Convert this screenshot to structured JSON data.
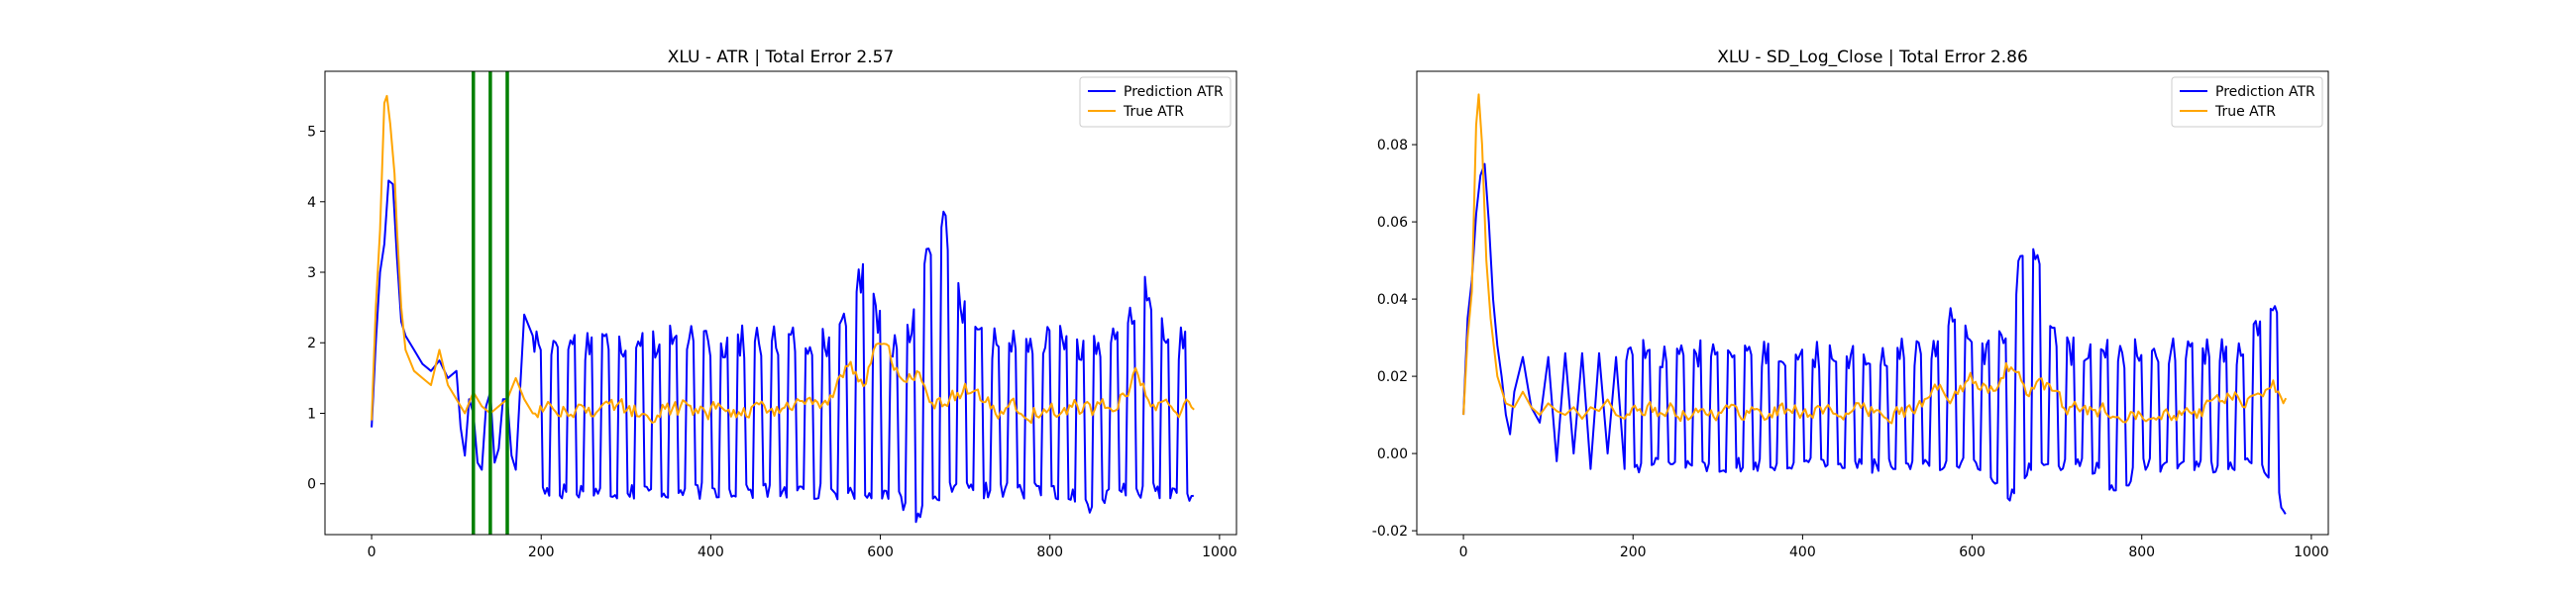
{
  "chart_data": [
    {
      "type": "line",
      "title": "XLU - ATR | Total Error 2.57",
      "xlabel": "",
      "ylabel": "",
      "xlim": [
        -55,
        1020
      ],
      "ylim": [
        -0.72,
        5.85
      ],
      "xticks": [
        0,
        200,
        400,
        600,
        800,
        1000
      ],
      "yticks": [
        0,
        1,
        2,
        3,
        4,
        5
      ],
      "grid": false,
      "legend_position": "upper right",
      "vlines": {
        "x": [
          120,
          140,
          160
        ],
        "color": "#008000"
      },
      "series": [
        {
          "name": "Prediction ATR",
          "color": "#0000ff",
          "points": [
            [
              0,
              0.8
            ],
            [
              5,
              2.0
            ],
            [
              10,
              3.0
            ],
            [
              15,
              3.4
            ],
            [
              20,
              4.3
            ],
            [
              25,
              4.25
            ],
            [
              30,
              3.2
            ],
            [
              35,
              2.3
            ],
            [
              40,
              2.1
            ],
            [
              50,
              1.9
            ],
            [
              60,
              1.7
            ],
            [
              70,
              1.6
            ],
            [
              80,
              1.75
            ],
            [
              90,
              1.5
            ],
            [
              100,
              1.6
            ],
            [
              105,
              0.8
            ],
            [
              110,
              0.4
            ],
            [
              115,
              1.2
            ],
            [
              120,
              1.0
            ],
            [
              125,
              0.3
            ],
            [
              130,
              0.2
            ],
            [
              135,
              1.1
            ],
            [
              140,
              1.3
            ],
            [
              145,
              0.3
            ],
            [
              150,
              0.5
            ],
            [
              155,
              1.2
            ],
            [
              160,
              1.2
            ],
            [
              165,
              0.4
            ],
            [
              170,
              0.2
            ],
            [
              175,
              1.3
            ],
            [
              180,
              2.4
            ],
            [
              190,
              2.1
            ]
          ],
          "cycle": {
            "period": 20,
            "start": 190,
            "end": 970,
            "high_base": 2.0,
            "low_base": -0.1,
            "high_noise": 0.25,
            "low_noise": 0.12,
            "peaks": [
              [
                580,
                2.9
              ],
              [
                660,
                3.2
              ],
              [
                680,
                3.1
              ],
              [
                910,
                2.7
              ]
            ],
            "troughs": [
              [
                640,
                -0.45
              ],
              [
                850,
                -0.35
              ],
              [
                970,
                -0.2
              ]
            ]
          }
        },
        {
          "name": "True ATR",
          "color": "#ffa500",
          "points": [
            [
              0,
              0.9
            ],
            [
              5,
              2.5
            ],
            [
              10,
              3.6
            ],
            [
              15,
              5.4
            ],
            [
              18,
              5.5
            ],
            [
              22,
              5.1
            ],
            [
              27,
              4.4
            ],
            [
              30,
              3.6
            ],
            [
              35,
              2.5
            ],
            [
              40,
              1.9
            ],
            [
              50,
              1.6
            ],
            [
              60,
              1.5
            ],
            [
              70,
              1.4
            ],
            [
              80,
              1.9
            ],
            [
              90,
              1.4
            ],
            [
              100,
              1.2
            ],
            [
              110,
              1.0
            ],
            [
              120,
              1.3
            ],
            [
              130,
              1.1
            ],
            [
              140,
              1.0
            ],
            [
              150,
              1.1
            ],
            [
              160,
              1.2
            ],
            [
              170,
              1.5
            ],
            [
              180,
              1.2
            ],
            [
              190,
              1.0
            ]
          ],
          "noise": {
            "start": 190,
            "end": 970,
            "base": 1.05,
            "amp": 0.22,
            "bumps": [
              [
                560,
                1.7
              ],
              [
                600,
                2.0
              ],
              [
                640,
                1.5
              ],
              [
                700,
                1.35
              ],
              [
                900,
                1.5
              ]
            ]
          }
        }
      ]
    },
    {
      "type": "line",
      "title": "XLU - SD_Log_Close | Total Error 2.86",
      "xlabel": "",
      "ylabel": "",
      "xlim": [
        -55,
        1020
      ],
      "ylim": [
        -0.021,
        0.099
      ],
      "xticks": [
        0,
        200,
        400,
        600,
        800,
        1000
      ],
      "yticks": [
        -0.02,
        0.0,
        0.02,
        0.04,
        0.06,
        0.08
      ],
      "grid": false,
      "legend_position": "upper right",
      "series": [
        {
          "name": "Prediction ATR",
          "color": "#0000ff",
          "points": [
            [
              0,
              0.01
            ],
            [
              5,
              0.035
            ],
            [
              10,
              0.045
            ],
            [
              15,
              0.062
            ],
            [
              20,
              0.072
            ],
            [
              25,
              0.075
            ],
            [
              30,
              0.06
            ],
            [
              35,
              0.04
            ],
            [
              40,
              0.028
            ],
            [
              45,
              0.02
            ],
            [
              50,
              0.01
            ],
            [
              55,
              0.005
            ],
            [
              60,
              0.016
            ],
            [
              70,
              0.025
            ],
            [
              80,
              0.012
            ],
            [
              90,
              0.008
            ],
            [
              100,
              0.025
            ],
            [
              110,
              -0.002
            ],
            [
              120,
              0.026
            ],
            [
              130,
              0.0
            ],
            [
              140,
              0.026
            ],
            [
              150,
              -0.004
            ],
            [
              160,
              0.026
            ],
            [
              170,
              0.0
            ],
            [
              180,
              0.025
            ],
            [
              190,
              -0.004
            ]
          ],
          "cycle": {
            "period": 20,
            "start": 190,
            "end": 970,
            "high_base": 0.026,
            "low_base": -0.003,
            "high_noise": 0.004,
            "low_noise": 0.002,
            "peaks": [
              [
                580,
                0.037
              ],
              [
                660,
                0.047
              ],
              [
                680,
                0.04
              ],
              [
                950,
                0.038
              ]
            ],
            "troughs": [
              [
                640,
                -0.011
              ],
              [
                770,
                -0.01
              ],
              [
                970,
                -0.014
              ]
            ]
          }
        },
        {
          "name": "True ATR",
          "color": "#ffa500",
          "points": [
            [
              0,
              0.01
            ],
            [
              5,
              0.03
            ],
            [
              10,
              0.042
            ],
            [
              15,
              0.085
            ],
            [
              18,
              0.093
            ],
            [
              22,
              0.08
            ],
            [
              27,
              0.05
            ],
            [
              32,
              0.035
            ],
            [
              40,
              0.02
            ],
            [
              50,
              0.013
            ],
            [
              60,
              0.012
            ],
            [
              70,
              0.016
            ],
            [
              80,
              0.012
            ],
            [
              90,
              0.01
            ],
            [
              100,
              0.013
            ],
            [
              110,
              0.011
            ],
            [
              120,
              0.01
            ],
            [
              130,
              0.012
            ],
            [
              140,
              0.009
            ],
            [
              150,
              0.012
            ],
            [
              160,
              0.011
            ],
            [
              170,
              0.014
            ],
            [
              180,
              0.01
            ],
            [
              190,
              0.009
            ]
          ],
          "noise": {
            "start": 190,
            "end": 970,
            "base": 0.011,
            "amp": 0.0035,
            "bumps": [
              [
                560,
                0.017
              ],
              [
                600,
                0.019
              ],
              [
                640,
                0.023
              ],
              [
                680,
                0.018
              ],
              [
                900,
                0.015
              ],
              [
                950,
                0.018
              ]
            ]
          }
        }
      ]
    }
  ]
}
